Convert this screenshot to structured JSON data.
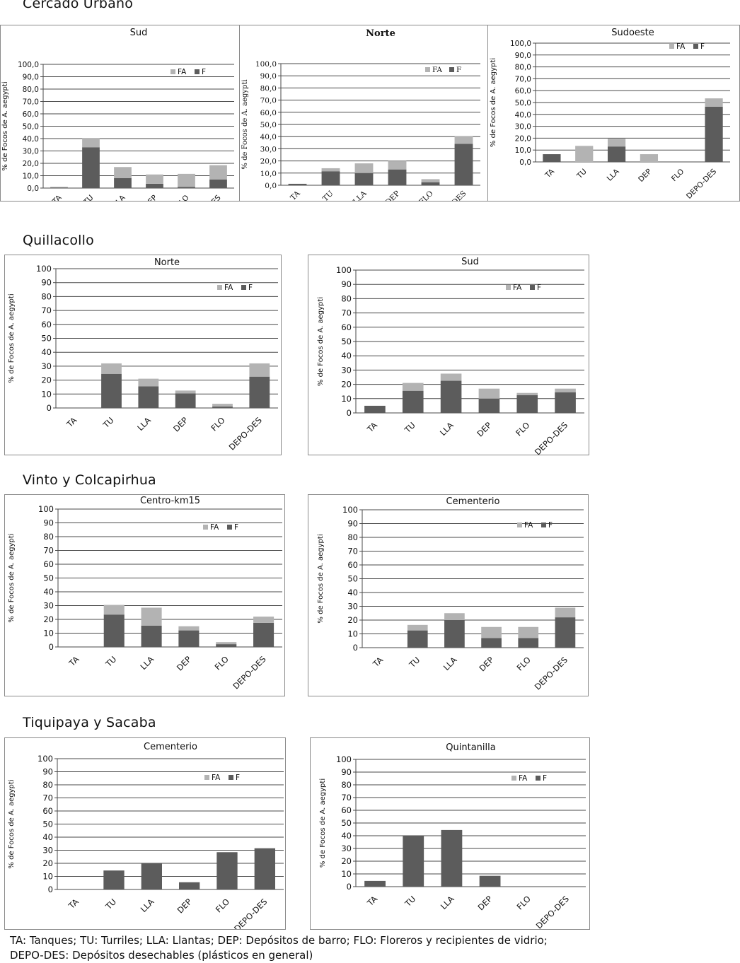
{
  "sections": {
    "cercado": "Cercado Urbano",
    "quillacollo": "Quillacollo",
    "vinto": "Vinto y Colcapirhua",
    "tiquipaya": "Tiquipaya y Sacaba"
  },
  "caption": {
    "line1": "TA: Tanques;  TU: Turriles;  LLA: Llantas;  DEP: Depósitos de barro;  FLO: Floreros y recipientes de vidrio;",
    "line2": "DEPO-DES: Depósitos desechables (plásticos en general)"
  },
  "colors": {
    "F": "#5c5c5c",
    "FA": "#b3b3b3",
    "grid": "#4a4a4a"
  },
  "chart_data": [
    {
      "id": "cercado-sud",
      "type": "bar",
      "stacked": true,
      "title": "Sud",
      "ylabel": "% de Focos de A. aegypti",
      "ylim": [
        0,
        100
      ],
      "ytick_step": 10,
      "ytick_format": "decimal",
      "categories": [
        "TA",
        "TU",
        "LLA",
        "DEP",
        "FLO",
        "DEPO-DES"
      ],
      "series": [
        {
          "name": "F",
          "values": [
            0.5,
            33,
            8,
            3.5,
            1,
            7
          ]
        },
        {
          "name": "FA",
          "values": [
            0.5,
            7.5,
            9,
            7.5,
            10.5,
            11.5
          ]
        }
      ],
      "legend": [
        "FA",
        "F"
      ]
    },
    {
      "id": "cercado-norte",
      "type": "bar",
      "stacked": true,
      "title": "Norte",
      "ylabel": "% de Focos de A. aegypti",
      "ylim": [
        0,
        100
      ],
      "ytick_step": 10,
      "ytick_format": "decimal",
      "categories": [
        "TA",
        "TU",
        "LLA",
        "DEP",
        "FLO",
        "DEPO-DES"
      ],
      "series": [
        {
          "name": "F",
          "values": [
            1.2,
            11.5,
            10,
            13,
            2.5,
            34
          ]
        },
        {
          "name": "FA",
          "values": [
            0,
            2.5,
            8,
            7,
            2.5,
            6.5
          ]
        }
      ],
      "legend": [
        "FA",
        "F"
      ]
    },
    {
      "id": "cercado-sudoeste",
      "type": "bar",
      "stacked": true,
      "title": "Sudoeste",
      "ylabel": "% de Focos de A. aegypti",
      "ylim": [
        0,
        100
      ],
      "ytick_step": 10,
      "ytick_format": "decimal",
      "categories": [
        "TA",
        "TU",
        "LLA",
        "DEP",
        "FLO",
        "DEPO-DES"
      ],
      "series": [
        {
          "name": "F",
          "values": [
            6.5,
            0,
            13,
            0,
            0,
            46.5
          ]
        },
        {
          "name": "FA",
          "values": [
            0,
            13.5,
            6.5,
            6.5,
            0,
            7
          ]
        }
      ],
      "legend": [
        "FA",
        "F"
      ]
    },
    {
      "id": "quillacollo-norte",
      "type": "bar",
      "stacked": true,
      "title": "Norte",
      "ylabel": "% de Focos de A. aegypti",
      "ylim": [
        0,
        100
      ],
      "ytick_step": 10,
      "ytick_format": "integer",
      "categories": [
        "TA",
        "TU",
        "LLA",
        "DEP",
        "FLO",
        "DEPO-DES"
      ],
      "series": [
        {
          "name": "F",
          "values": [
            0,
            24.5,
            15.5,
            10.5,
            1,
            22.5
          ]
        },
        {
          "name": "FA",
          "values": [
            0,
            7.5,
            5.5,
            2,
            2,
            9.5
          ]
        }
      ],
      "legend": [
        "FA",
        "F"
      ]
    },
    {
      "id": "quillacollo-sud",
      "type": "bar",
      "stacked": true,
      "title": "Sud",
      "ylabel": "% de Focos de A. aegypti",
      "ylim": [
        0,
        100
      ],
      "ytick_step": 10,
      "ytick_format": "integer",
      "categories": [
        "TA",
        "TU",
        "LLA",
        "DEP",
        "FLO",
        "DEPO-DES"
      ],
      "series": [
        {
          "name": "F",
          "values": [
            5,
            15.5,
            22.5,
            10,
            12.5,
            14.5
          ]
        },
        {
          "name": "FA",
          "values": [
            0,
            5.5,
            5,
            7,
            1.5,
            2.5
          ]
        }
      ],
      "legend": [
        "FA",
        "F"
      ]
    },
    {
      "id": "vinto-centro",
      "type": "bar",
      "stacked": true,
      "title": "Centro-km15",
      "ylabel": "% de Focos de A. aegypti",
      "ylim": [
        0,
        100
      ],
      "ytick_step": 10,
      "ytick_format": "integer",
      "categories": [
        "TA",
        "TU",
        "LLA",
        "DEP",
        "FLO",
        "DEPO-DES"
      ],
      "series": [
        {
          "name": "F",
          "values": [
            0,
            23.5,
            15.5,
            12,
            2,
            17.5
          ]
        },
        {
          "name": "FA",
          "values": [
            0,
            7,
            13,
            3,
            1.5,
            4.5
          ]
        }
      ],
      "legend": [
        "FA",
        "F"
      ]
    },
    {
      "id": "vinto-cementerio",
      "type": "bar",
      "stacked": true,
      "title": "Cementerio",
      "ylabel": "% de Focos de A. aegypti",
      "ylim": [
        0,
        100
      ],
      "ytick_step": 10,
      "ytick_format": "integer",
      "categories": [
        "TA",
        "TU",
        "LLA",
        "DEP",
        "FLO",
        "DEPO-DES"
      ],
      "series": [
        {
          "name": "F",
          "values": [
            0,
            12.5,
            20,
            7,
            7,
            22
          ]
        },
        {
          "name": "FA",
          "values": [
            0,
            4,
            5,
            8,
            8,
            7
          ]
        }
      ],
      "legend": [
        "FA",
        "F"
      ]
    },
    {
      "id": "tiquipaya-cementerio",
      "type": "bar",
      "stacked": true,
      "title": "Cementerio",
      "ylabel": "% de Focos de A. aegypti",
      "ylim": [
        0,
        100
      ],
      "ytick_step": 10,
      "ytick_format": "integer",
      "categories": [
        "TA",
        "TU",
        "LLA",
        "DEP",
        "FLO",
        "DEPO-DES"
      ],
      "series": [
        {
          "name": "F",
          "values": [
            0,
            14.5,
            20,
            5.5,
            28.5,
            31.5
          ]
        },
        {
          "name": "FA",
          "values": [
            0,
            0,
            0,
            0,
            0,
            0
          ]
        }
      ],
      "legend": [
        "FA",
        "F"
      ]
    },
    {
      "id": "tiquipaya-quintanilla",
      "type": "bar",
      "stacked": true,
      "title": "Quintanilla",
      "ylabel": "% de Focos de A. aegypti",
      "ylim": [
        0,
        100
      ],
      "ytick_step": 10,
      "ytick_format": "integer",
      "categories": [
        "TA",
        "TU",
        "LLA",
        "DEP",
        "FLO",
        "DEPO-DES"
      ],
      "series": [
        {
          "name": "F",
          "values": [
            4.5,
            40,
            44.5,
            8.5,
            0,
            0
          ]
        },
        {
          "name": "FA",
          "values": [
            0,
            0,
            0,
            0,
            0,
            0
          ]
        }
      ],
      "legend": [
        "FA",
        "F"
      ]
    }
  ]
}
